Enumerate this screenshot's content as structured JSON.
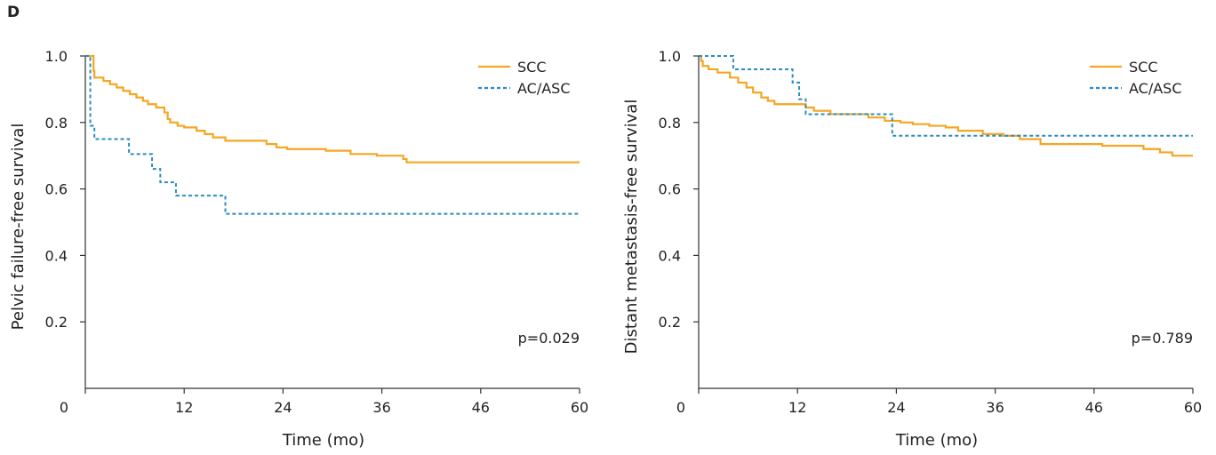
{
  "panel_label": "D",
  "colors": {
    "SCC": "#f5a623",
    "AC/ASC": "#2b8cbe"
  },
  "chart_data": [
    {
      "type": "line",
      "xlabel": "Time (mo)",
      "ylabel": "Pelvic failure-free survival",
      "xticks": [
        "0",
        "12",
        "24",
        "36",
        "46",
        "60"
      ],
      "yticks": [
        "0.2",
        "0.4",
        "0.6",
        "0.8",
        "1.0"
      ],
      "xlim": [
        0,
        60
      ],
      "ylim": [
        0,
        1.0
      ],
      "legend": [
        "SCC",
        "AC/ASC"
      ],
      "legend_position": "top-right",
      "annotation": "p=0.029",
      "series": [
        {
          "name": "SCC",
          "style": "solid",
          "step": true,
          "points": [
            [
              0,
              1.0
            ],
            [
              1.0,
              0.98
            ],
            [
              1.0,
              0.955
            ],
            [
              1.1,
              0.935
            ],
            [
              2.2,
              0.925
            ],
            [
              3.0,
              0.915
            ],
            [
              3.8,
              0.905
            ],
            [
              4.6,
              0.895
            ],
            [
              5.4,
              0.885
            ],
            [
              6.2,
              0.875
            ],
            [
              7.0,
              0.865
            ],
            [
              7.6,
              0.855
            ],
            [
              8.6,
              0.845
            ],
            [
              9.6,
              0.83
            ],
            [
              10.0,
              0.81
            ],
            [
              10.3,
              0.8
            ],
            [
              11.2,
              0.79
            ],
            [
              12.0,
              0.785
            ],
            [
              13.5,
              0.775
            ],
            [
              14.5,
              0.765
            ],
            [
              15.5,
              0.755
            ],
            [
              17.0,
              0.745
            ],
            [
              22.0,
              0.735
            ],
            [
              23.2,
              0.725
            ],
            [
              24.5,
              0.72
            ],
            [
              29.2,
              0.715
            ],
            [
              32.2,
              0.705
            ],
            [
              35.4,
              0.7
            ],
            [
              38.6,
              0.69
            ],
            [
              39.0,
              0.68
            ],
            [
              60,
              0.68
            ]
          ]
        },
        {
          "name": "AC/ASC",
          "style": "dashed",
          "step": true,
          "points": [
            [
              0,
              1.0
            ],
            [
              0.6,
              0.95
            ],
            [
              0.6,
              0.79
            ],
            [
              1.1,
              0.75
            ],
            [
              5.3,
              0.705
            ],
            [
              8.1,
              0.66
            ],
            [
              9.1,
              0.62
            ],
            [
              11.0,
              0.58
            ],
            [
              17.0,
              0.525
            ],
            [
              60,
              0.525
            ]
          ]
        }
      ]
    },
    {
      "type": "line",
      "xlabel": "Time (mo)",
      "ylabel": "Distant metastasis-free survival",
      "xticks": [
        "0",
        "12",
        "24",
        "36",
        "46",
        "60"
      ],
      "yticks": [
        "0.2",
        "0.4",
        "0.6",
        "0.8",
        "1.0"
      ],
      "xlim": [
        0,
        60
      ],
      "ylim": [
        0,
        1.0
      ],
      "legend": [
        "SCC",
        "AC/ASC"
      ],
      "legend_position": "top-right",
      "annotation": "p=0.789",
      "series": [
        {
          "name": "SCC",
          "style": "solid",
          "step": true,
          "points": [
            [
              0,
              1.0
            ],
            [
              0.3,
              0.985
            ],
            [
              0.5,
              0.97
            ],
            [
              1.2,
              0.96
            ],
            [
              2.3,
              0.95
            ],
            [
              3.8,
              0.935
            ],
            [
              4.8,
              0.92
            ],
            [
              5.8,
              0.905
            ],
            [
              6.6,
              0.89
            ],
            [
              7.6,
              0.875
            ],
            [
              8.4,
              0.865
            ],
            [
              9.2,
              0.855
            ],
            [
              13.0,
              0.845
            ],
            [
              14.0,
              0.835
            ],
            [
              16.0,
              0.825
            ],
            [
              20.6,
              0.815
            ],
            [
              22.6,
              0.805
            ],
            [
              24.5,
              0.8
            ],
            [
              26.0,
              0.795
            ],
            [
              28.0,
              0.79
            ],
            [
              30.0,
              0.785
            ],
            [
              31.5,
              0.775
            ],
            [
              34.5,
              0.765
            ],
            [
              37.0,
              0.76
            ],
            [
              39.0,
              0.75
            ],
            [
              41.5,
              0.735
            ],
            [
              49.0,
              0.73
            ],
            [
              54.0,
              0.72
            ],
            [
              56.0,
              0.71
            ],
            [
              57.5,
              0.7
            ],
            [
              60,
              0.7
            ]
          ]
        },
        {
          "name": "AC/ASC",
          "style": "dashed",
          "step": true,
          "points": [
            [
              0,
              1.0
            ],
            [
              4.2,
              0.96
            ],
            [
              11.4,
              0.92
            ],
            [
              12.2,
              0.87
            ],
            [
              13.0,
              0.825
            ],
            [
              23.5,
              0.76
            ],
            [
              60,
              0.76
            ]
          ]
        }
      ]
    }
  ]
}
